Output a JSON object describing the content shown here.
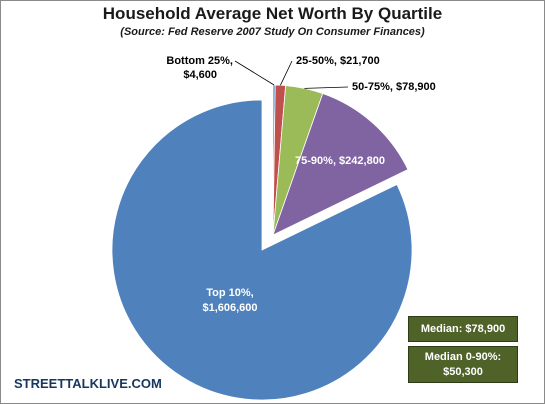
{
  "chart_data": {
    "type": "pie",
    "title": "Household Average Net Worth  By Quartile",
    "subtitle": "(Source:  Fed Reserve 2007 Study On Consumer Finances)",
    "exploded": true,
    "slices": [
      {
        "label": "Bottom 25%,",
        "value_label": "$4,600",
        "value": 4600,
        "color": "#4f81bd"
      },
      {
        "label": "25-50%,",
        "value_label": "$21,700",
        "value": 21700,
        "color": "#c0504d"
      },
      {
        "label": "50-75%,",
        "value_label": "$78,900",
        "value": 78900,
        "color": "#9bbb59"
      },
      {
        "label": "75-90%,",
        "value_label": "$242,800",
        "value": 242800,
        "color": "#8064a2"
      },
      {
        "label": "Top 10%,",
        "value_label": "$1,606,600",
        "value": 1606600,
        "color": "#4f81bd"
      }
    ]
  },
  "annotations": {
    "median": "Median: $78,900",
    "median_0_90_line1": "Median 0-90%:",
    "median_0_90_line2": "$50,300"
  },
  "brand": "STREETTALKLIVE.COM"
}
